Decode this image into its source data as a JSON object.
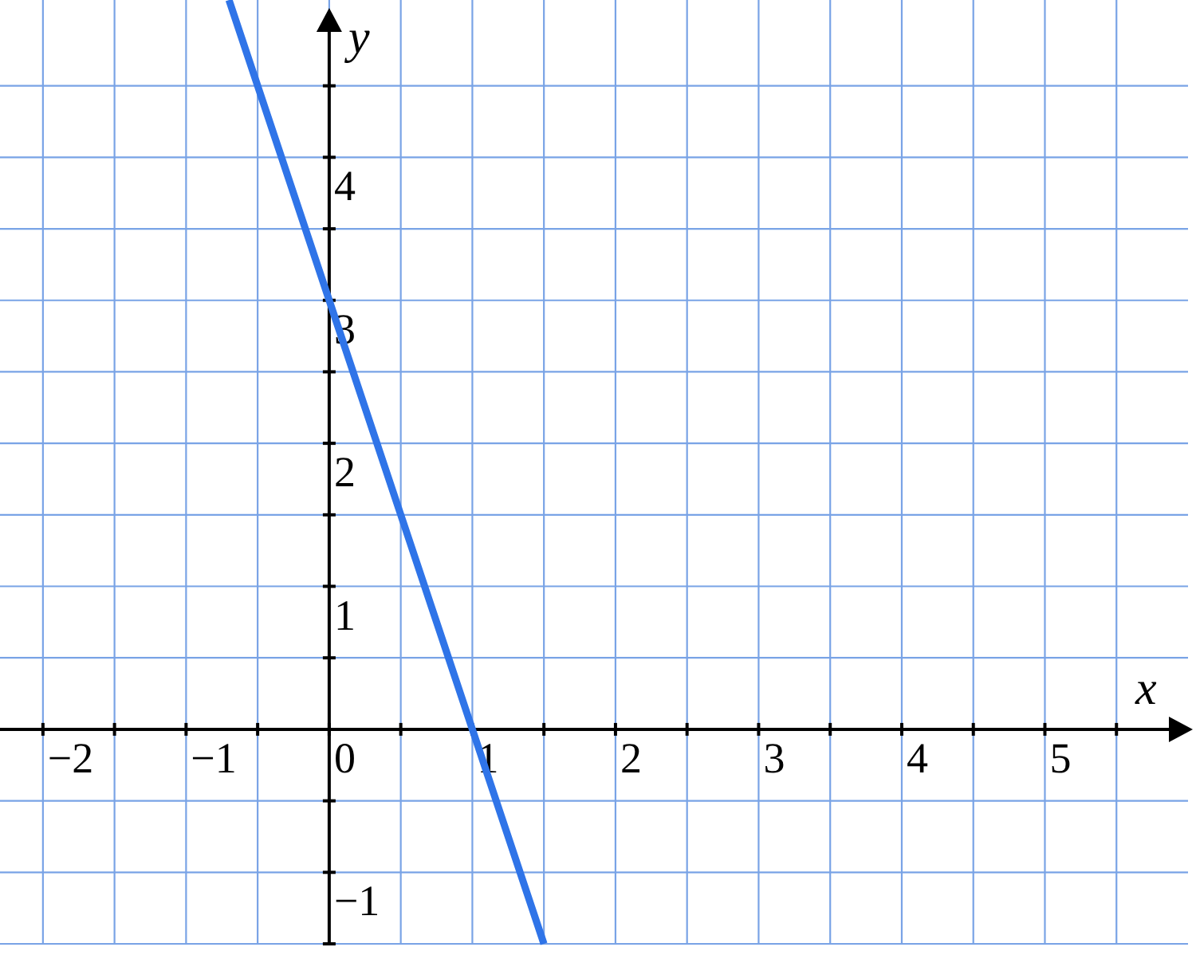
{
  "chart_data": {
    "type": "line",
    "xlabel": "x",
    "ylabel": "y",
    "x": [
      -0.7,
      0,
      1,
      1.5
    ],
    "series": [
      {
        "color": "#2f74e8",
        "values": [
          5.1,
          3,
          0,
          -1.5
        ]
      }
    ],
    "xlim": [
      -2.3,
      6
    ],
    "ylim": [
      -1.5,
      5.1
    ],
    "xticks": [
      {
        "value": -2,
        "label": "−2"
      },
      {
        "value": -1.5,
        "label": null
      },
      {
        "value": -1,
        "label": "−1"
      },
      {
        "value": -0.5,
        "label": null
      },
      0,
      {
        "value": 0.5,
        "label": null
      },
      1,
      {
        "value": 1.5,
        "label": null
      },
      2,
      {
        "value": 2.5,
        "label": null
      },
      3,
      {
        "value": 3.5,
        "label": null
      },
      4,
      {
        "value": 4.5,
        "label": null
      },
      5,
      {
        "value": 5.5,
        "label": null
      }
    ],
    "yticks": [
      {
        "value": -1.5,
        "label": null
      },
      {
        "value": -1,
        "label": "−1"
      },
      {
        "value": -0.5,
        "label": null
      },
      {
        "value": 0.5,
        "label": null
      },
      1,
      {
        "value": 1.5,
        "label": null
      },
      2,
      {
        "value": 2.5,
        "label": null
      },
      3,
      {
        "value": 3.5,
        "label": null
      },
      4,
      {
        "value": 4.5,
        "label": null
      }
    ],
    "grid": true,
    "line_style": "solid"
  }
}
